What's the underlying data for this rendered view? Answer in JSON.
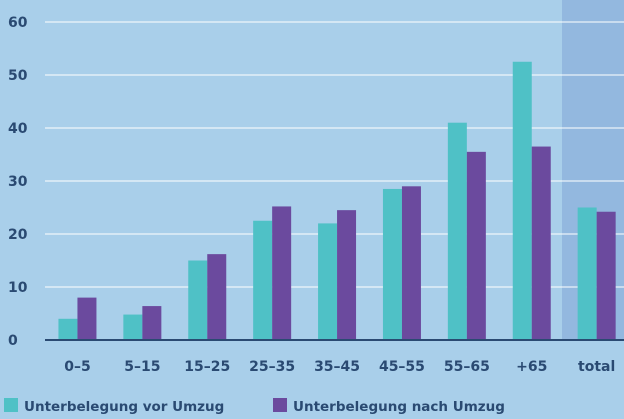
{
  "chart_data": {
    "type": "bar",
    "title": "",
    "xlabel": "",
    "ylabel": "",
    "ylim": [
      0,
      60
    ],
    "yticks": [
      0,
      10,
      20,
      30,
      40,
      50,
      60
    ],
    "grid": true,
    "legend_position": "bottom-left",
    "highlighted_category": "total",
    "categories": [
      "0–5",
      "5–15",
      "15–25",
      "25–35",
      "35–45",
      "45–55",
      "55–65",
      "+65",
      "total"
    ],
    "series": [
      {
        "name": "Unterbelegung vor Umzug",
        "color": "#4fc1c6",
        "values": [
          4,
          4.8,
          15,
          22.5,
          22,
          28.5,
          41,
          52.5,
          25
        ]
      },
      {
        "name": "Unterbelegung nach Umzug",
        "color": "#6b4a9e",
        "values": [
          8,
          6.4,
          16.2,
          25.2,
          24.5,
          29,
          35.5,
          36.5,
          24.2
        ]
      }
    ]
  },
  "colors": {
    "background": "#a9cfea",
    "highlight_band": "#93b8df",
    "gridline": "#ffffff",
    "axis": "#2a4a72",
    "text": "#2a4a72"
  }
}
